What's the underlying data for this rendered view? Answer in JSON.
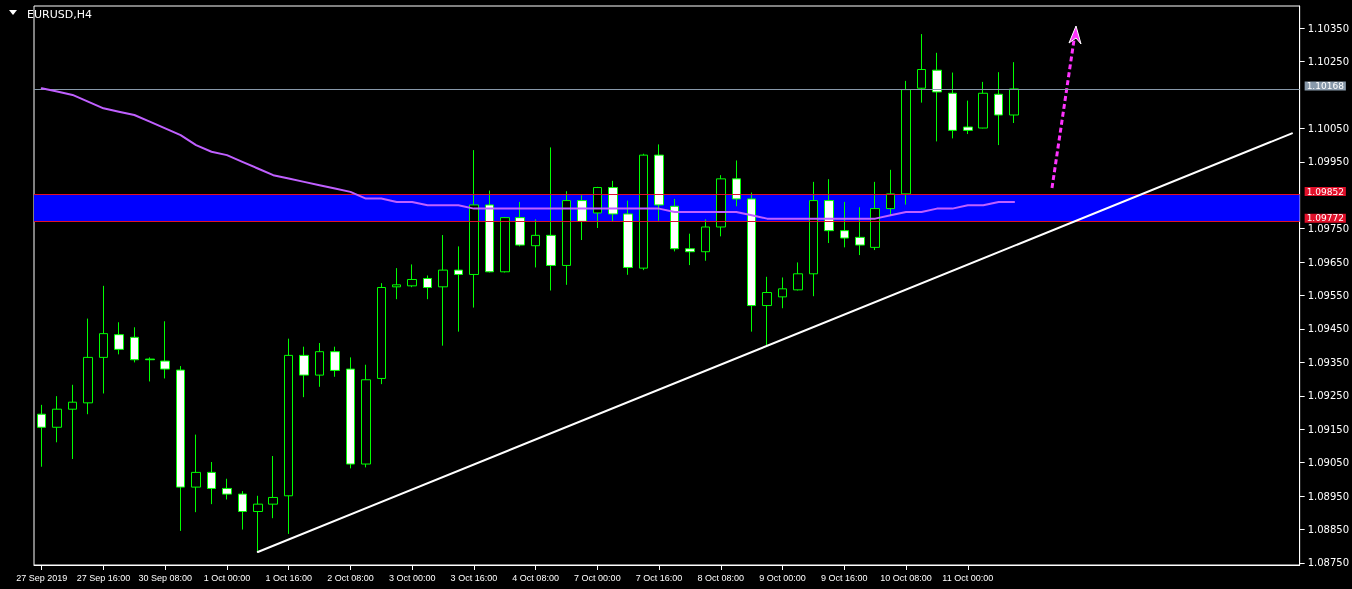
{
  "chart_data": {
    "type": "candlestick",
    "title": "EURUSD,H4",
    "color": "#00ff00",
    "categories": [
      "27 Sep 2019",
      null,
      null,
      null,
      "27 Sep 16:00",
      null,
      null,
      null,
      "30 Sep 08:00",
      null,
      null,
      null,
      "1 Oct 00:00",
      null,
      null,
      null,
      "1 Oct 16:00",
      null,
      null,
      null,
      "2 Oct 08:00",
      null,
      null,
      null,
      "3 Oct 00:00",
      null,
      null,
      null,
      "3 Oct 16:00",
      null,
      null,
      null,
      "4 Oct 08:00",
      null,
      null,
      null,
      "7 Oct 00:00",
      null,
      null,
      null,
      "7 Oct 16:00",
      null,
      null,
      null,
      "8 Oct 08:00",
      null,
      null,
      null,
      "9 Oct 00:00",
      null,
      null,
      null,
      "9 Oct 16:00",
      null,
      null,
      null,
      "10 Oct 08:00",
      null,
      null,
      null,
      "11 Oct 00:00",
      null,
      null,
      null,
      null,
      null,
      null,
      null,
      null,
      null,
      null,
      null,
      null,
      null,
      null,
      null,
      null,
      null,
      null,
      null,
      null,
      null
    ],
    "ohlc": [
      [
        1.09195,
        1.09223,
        1.09038,
        1.09156
      ],
      [
        1.09156,
        1.09249,
        1.09111,
        1.0921
      ],
      [
        1.0921,
        1.09283,
        1.09061,
        1.09231
      ],
      [
        1.09229,
        1.09481,
        1.09195,
        1.09365
      ],
      [
        1.09365,
        1.09579,
        1.09257,
        1.09436
      ],
      [
        1.09433,
        1.0947,
        1.09374,
        1.09389
      ],
      [
        1.09425,
        1.09455,
        1.0935,
        1.09358
      ],
      [
        1.0936,
        1.09365,
        1.09293,
        1.09358
      ],
      [
        1.09354,
        1.09473,
        1.09302,
        1.0933
      ],
      [
        1.09327,
        1.09339,
        1.08846,
        1.08977
      ],
      [
        1.08977,
        1.09134,
        1.08902,
        1.09021
      ],
      [
        1.09021,
        1.09052,
        1.08926,
        1.08973
      ],
      [
        1.08973,
        1.09002,
        1.0894,
        1.08956
      ],
      [
        1.08956,
        1.08965,
        1.0885,
        1.08904
      ],
      [
        1.08904,
        1.08951,
        1.08783,
        1.08926
      ],
      [
        1.08926,
        1.0907,
        1.08884,
        1.08946
      ],
      [
        1.08951,
        1.09421,
        1.08837,
        1.09371
      ],
      [
        1.09371,
        1.09397,
        1.09246,
        1.09312
      ],
      [
        1.09312,
        1.09408,
        1.09277,
        1.09382
      ],
      [
        1.09382,
        1.09397,
        1.09307,
        1.09326
      ],
      [
        1.0933,
        1.09365,
        1.09033,
        1.09046
      ],
      [
        1.09046,
        1.09343,
        1.09036,
        1.09298
      ],
      [
        1.09302,
        1.09587,
        1.09285,
        1.09574
      ],
      [
        1.09576,
        1.09632,
        1.09539,
        1.09582
      ],
      [
        1.09579,
        1.09643,
        1.09575,
        1.09598
      ],
      [
        1.09601,
        1.0961,
        1.09539,
        1.09574
      ],
      [
        1.09576,
        1.09731,
        1.094,
        1.09626
      ],
      [
        1.09626,
        1.09697,
        1.09442,
        1.09613
      ],
      [
        1.09613,
        1.09985,
        1.09514,
        1.09821
      ],
      [
        1.09821,
        1.09864,
        1.09619,
        1.09621
      ],
      [
        1.09621,
        1.09785,
        1.09619,
        1.09783
      ],
      [
        1.09783,
        1.0983,
        1.09697,
        1.09701
      ],
      [
        1.09699,
        1.09778,
        1.09634,
        1.0973
      ],
      [
        1.0973,
        1.09993,
        1.09565,
        1.0964
      ],
      [
        1.0964,
        1.09862,
        1.09582,
        1.09834
      ],
      [
        1.09834,
        1.0985,
        1.09716,
        1.09772
      ],
      [
        1.09797,
        1.09875,
        1.09752,
        1.09873
      ],
      [
        1.09873,
        1.09893,
        1.09772,
        1.09794
      ],
      [
        1.09794,
        1.09834,
        1.09612,
        1.09634
      ],
      [
        1.09632,
        1.09974,
        1.09626,
        1.0997
      ],
      [
        1.0997,
        1.10002,
        1.09774,
        1.09821
      ],
      [
        1.09817,
        1.09839,
        1.09682,
        1.0969
      ],
      [
        1.0969,
        1.09735,
        1.09641,
        1.09681
      ],
      [
        1.09681,
        1.09778,
        1.09654,
        1.09755
      ],
      [
        1.09755,
        1.0991,
        1.09727,
        1.09899
      ],
      [
        1.09899,
        1.09954,
        1.09817,
        1.09839
      ],
      [
        1.09839,
        1.09858,
        1.09442,
        1.0952
      ],
      [
        1.0952,
        1.09606,
        1.09402,
        1.09559
      ],
      [
        1.09546,
        1.09604,
        1.09512,
        1.0957
      ],
      [
        1.09567,
        1.09649,
        1.09565,
        1.09615
      ],
      [
        1.09615,
        1.0989,
        1.09548,
        1.09834
      ],
      [
        1.09834,
        1.09898,
        1.09707,
        1.09744
      ],
      [
        1.09744,
        1.0983,
        1.09694,
        1.09722
      ],
      [
        1.09724,
        1.09814,
        1.09671,
        1.09701
      ],
      [
        1.09694,
        1.0989,
        1.09686,
        1.0981
      ],
      [
        1.0981,
        1.09926,
        1.09789,
        1.09854
      ],
      [
        1.09854,
        1.10192,
        1.09822,
        1.10166
      ],
      [
        1.1017,
        1.10332,
        1.10127,
        1.10226
      ],
      [
        1.10224,
        1.10276,
        1.10011,
        1.10159
      ],
      [
        1.10155,
        1.10217,
        1.1002,
        1.10044
      ],
      [
        1.10054,
        1.10133,
        1.10033,
        1.10044
      ],
      [
        1.10051,
        1.10189,
        1.1005,
        1.10155
      ],
      [
        1.10152,
        1.10218,
        1.1,
        1.1009
      ],
      [
        1.1009,
        1.10248,
        1.10066,
        1.10168
      ],
      null,
      null,
      null,
      null,
      null,
      null,
      null,
      null,
      null,
      null,
      null,
      null,
      null,
      null,
      null,
      null,
      null,
      null
    ],
    "series": [
      {
        "type": "line",
        "color": "#c060ff",
        "values": [
          1.1017,
          1.1016,
          1.1015,
          1.1013,
          1.1011,
          1.101,
          1.1009,
          1.1007,
          1.1005,
          1.1003,
          1.1,
          1.0998,
          1.0997,
          1.0995,
          1.0993,
          1.0991,
          1.099,
          1.0989,
          1.0988,
          1.0987,
          1.0986,
          1.0984,
          1.0984,
          1.0983,
          1.0983,
          1.0982,
          1.0982,
          1.0982,
          1.0981,
          1.0981,
          1.0981,
          1.0981,
          1.0981,
          1.0981,
          1.0981,
          1.0981,
          1.0981,
          1.0981,
          1.0981,
          1.0981,
          1.0981,
          1.098,
          1.098,
          1.098,
          1.098,
          1.098,
          1.0979,
          1.0978,
          1.0978,
          1.0978,
          1.0978,
          1.0978,
          1.0978,
          1.0978,
          1.0978,
          1.0979,
          1.098,
          1.098,
          1.0981,
          1.0981,
          1.0982,
          1.0982,
          1.0983,
          1.0983,
          null,
          null,
          null,
          null,
          null,
          null,
          null,
          null,
          null,
          null,
          null,
          null,
          null,
          null,
          null,
          null,
          null,
          null
        ]
      },
      {
        "type": "line",
        "color": "#ffffff",
        "values": [
          null,
          null,
          null,
          null,
          null,
          null,
          null,
          null,
          null,
          null,
          null,
          null,
          null,
          null,
          1.08783,
          null,
          null,
          null,
          null,
          null,
          null,
          null,
          null,
          null,
          null,
          null,
          null,
          null,
          null,
          null,
          null,
          null,
          null,
          null,
          null,
          null,
          null,
          null,
          null,
          null,
          null,
          null,
          null,
          null,
          null,
          null,
          null,
          null,
          null,
          null,
          null,
          null,
          null,
          null,
          null,
          null,
          null,
          null,
          null,
          null,
          null,
          null,
          null,
          null,
          null,
          null,
          null,
          null,
          null,
          null,
          null,
          null,
          null,
          null,
          null,
          null,
          null,
          null,
          null,
          null,
          null,
          1.10035
        ]
      }
    ],
    "ylim": [
      1.08744,
      1.10416
    ],
    "yticks": [
      {
        "value": 1.0875,
        "label": "1.08750"
      },
      {
        "value": 1.0885,
        "label": "1.08850"
      },
      {
        "value": 1.0895,
        "label": "1.08950"
      },
      {
        "value": 1.0905,
        "label": "1.09050"
      },
      {
        "value": 1.0915,
        "label": "1.09150"
      },
      {
        "value": 1.0925,
        "label": "1.09250"
      },
      {
        "value": 1.0935,
        "label": "1.09350"
      },
      {
        "value": 1.0945,
        "label": "1.09450"
      },
      {
        "value": 1.0955,
        "label": "1.09550"
      },
      {
        "value": 1.0965,
        "label": "1.09650"
      },
      {
        "value": 1.0975,
        "label": "1.09750"
      },
      {
        "value": 1.0995,
        "label": "1.09950"
      },
      {
        "value": 1.1005,
        "label": "1.10050"
      },
      {
        "value": 1.1025,
        "label": "1.10250"
      },
      {
        "value": 1.1035,
        "label": "1.10350"
      }
    ],
    "ref_lines": [
      {
        "axis": "y",
        "value": 1.10168,
        "label": "1.10168",
        "color": "#8899aa"
      },
      {
        "axis": "y",
        "value": 1.09852,
        "label": "1.09852",
        "color": "#e0102a"
      },
      {
        "axis": "y",
        "value": 1.09772,
        "label": "1.09772",
        "color": "#e0102a"
      }
    ],
    "bands": [
      {
        "axis": "y",
        "from": 1.09772,
        "to": 1.09852,
        "color": "#0000ff"
      }
    ],
    "grid": false
  }
}
